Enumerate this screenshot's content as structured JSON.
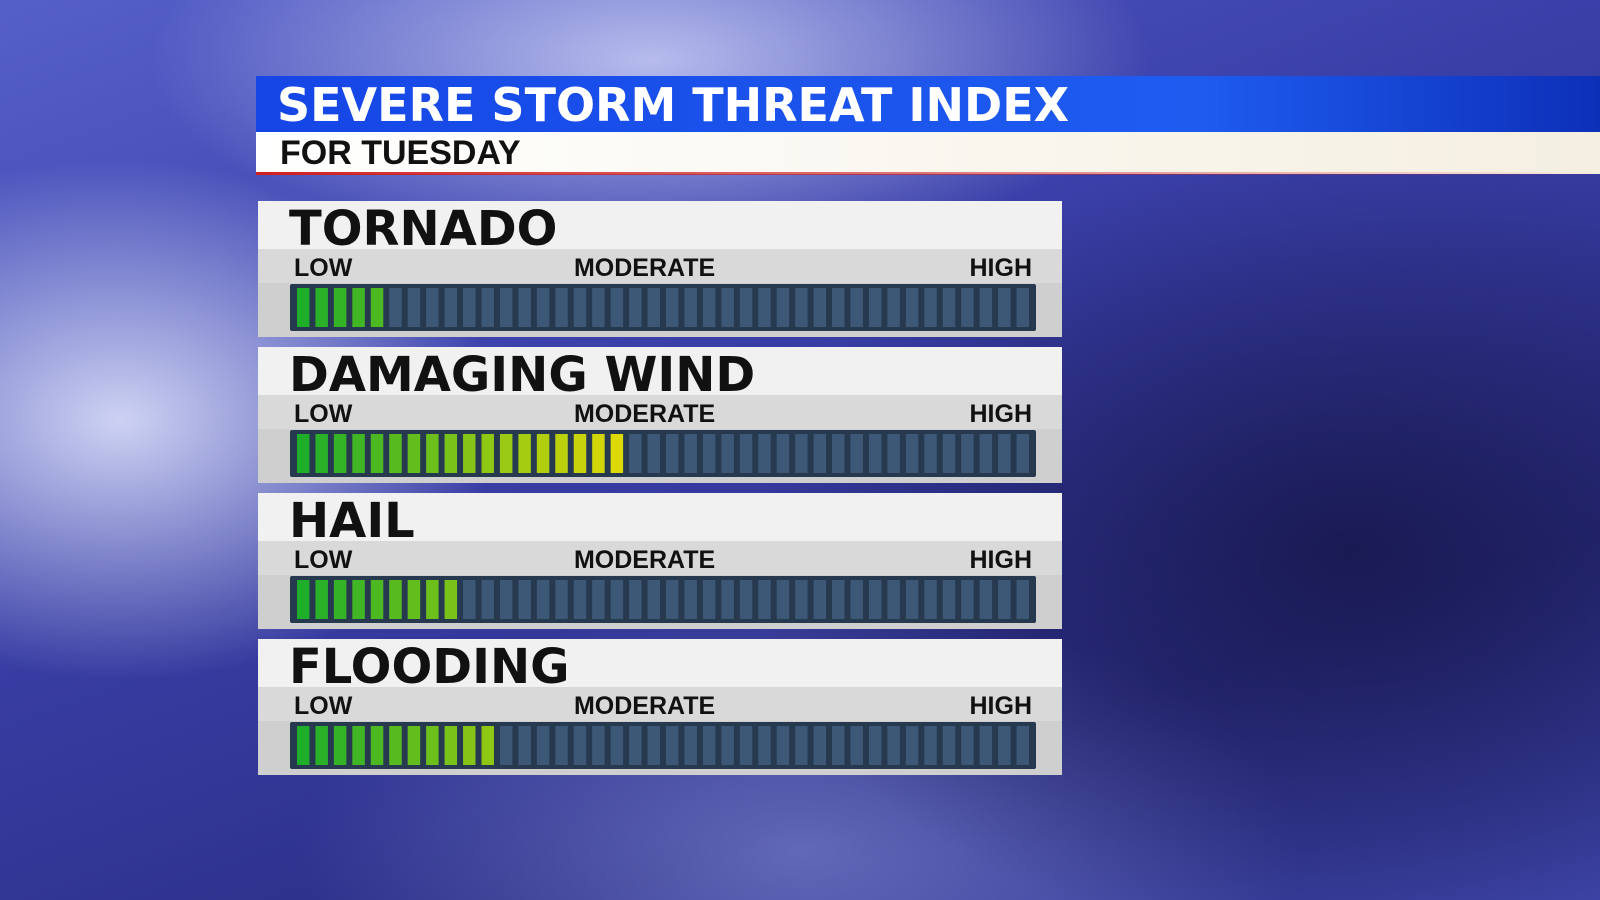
{
  "chart_data": {
    "type": "meter",
    "title": "SEVERE STORM THREAT INDEX",
    "subtitle": "FOR TUESDAY",
    "categories": [
      "TORNADO",
      "DAMAGING WIND",
      "HAIL",
      "FLOODING"
    ],
    "values": [
      5,
      18,
      9,
      11
    ],
    "xlim": [
      0,
      40
    ],
    "xticks": [
      {
        "value": 0,
        "label": "LOW"
      },
      {
        "value": 19,
        "label": "MODERATE"
      },
      {
        "value": 40,
        "label": "HIGH"
      }
    ],
    "colors": [
      "#1fae2a",
      "#ffe000"
    ],
    "empty_color": "#3d5877"
  }
}
